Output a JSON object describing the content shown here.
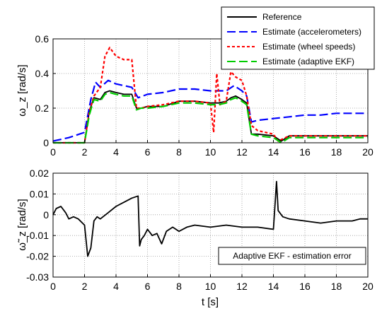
{
  "chart_data": [
    {
      "type": "line",
      "ylabel": "ω_z  [rad/s]",
      "xlim": [
        0,
        20
      ],
      "ylim": [
        0,
        0.6
      ],
      "xticks": [
        0,
        2,
        4,
        6,
        8,
        10,
        12,
        14,
        16,
        18,
        20
      ],
      "yticks": [
        0,
        0.2,
        0.4,
        0.6
      ],
      "ytick_labels": [
        "0",
        "0.2",
        "0.4",
        "0.6"
      ],
      "grid": true,
      "legend_position": "top-right",
      "series": [
        {
          "name": "Reference",
          "color": "#000000",
          "style": "solid",
          "x": [
            0,
            2.0,
            2.3,
            2.6,
            3.0,
            3.3,
            3.6,
            4.0,
            4.5,
            5.0,
            5.3,
            5.6,
            6.0,
            7.0,
            8.0,
            9.0,
            10.0,
            10.5,
            11.0,
            11.3,
            11.6,
            12.0,
            12.3,
            12.6,
            13.0,
            14.0,
            14.5,
            15.0,
            16.0,
            17.0,
            18.0,
            19.0,
            20.0
          ],
          "y": [
            0,
            0,
            0.18,
            0.26,
            0.25,
            0.29,
            0.3,
            0.29,
            0.28,
            0.28,
            0.2,
            0.2,
            0.21,
            0.21,
            0.24,
            0.24,
            0.23,
            0.23,
            0.24,
            0.26,
            0.27,
            0.25,
            0.23,
            0.05,
            0.05,
            0.04,
            0.01,
            0.04,
            0.04,
            0.04,
            0.04,
            0.04,
            0.04
          ]
        },
        {
          "name": "Estimate (accelerometers)",
          "color": "#0000ff",
          "style": "dashed",
          "x": [
            0,
            1.0,
            2.0,
            2.4,
            2.7,
            3.0,
            3.5,
            4.0,
            4.5,
            5.0,
            5.4,
            6.0,
            7.0,
            8.0,
            9.0,
            10.0,
            11.0,
            11.5,
            12.0,
            12.3,
            12.6,
            13.0,
            14.0,
            15.0,
            16.0,
            17.0,
            18.0,
            19.0,
            20.0
          ],
          "y": [
            0.01,
            0.03,
            0.06,
            0.25,
            0.35,
            0.32,
            0.36,
            0.34,
            0.33,
            0.32,
            0.26,
            0.28,
            0.29,
            0.31,
            0.31,
            0.3,
            0.3,
            0.33,
            0.3,
            0.27,
            0.12,
            0.13,
            0.14,
            0.15,
            0.16,
            0.16,
            0.17,
            0.17,
            0.17
          ]
        },
        {
          "name": "Estimate (wheel speeds)",
          "color": "#ff0000",
          "style": "dotted",
          "x": [
            0,
            2.0,
            2.3,
            2.6,
            3.0,
            3.3,
            3.6,
            4.0,
            4.5,
            5.0,
            5.3,
            5.6,
            6.0,
            7.0,
            8.0,
            9.0,
            10.0,
            10.2,
            10.4,
            10.6,
            11.0,
            11.3,
            11.6,
            12.0,
            12.3,
            12.6,
            13.0,
            14.0,
            14.3,
            15.0,
            16.0,
            17.0,
            18.0,
            19.0,
            20.0
          ],
          "y": [
            0,
            0,
            0.18,
            0.27,
            0.32,
            0.5,
            0.55,
            0.5,
            0.48,
            0.48,
            0.2,
            0.2,
            0.21,
            0.22,
            0.24,
            0.24,
            0.23,
            0.06,
            0.4,
            0.22,
            0.24,
            0.41,
            0.38,
            0.36,
            0.27,
            0.1,
            0.07,
            0.05,
            0.01,
            0.04,
            0.04,
            0.04,
            0.04,
            0.04,
            0.04
          ]
        },
        {
          "name": "Estimate (adaptive EKF)",
          "color": "#00cc00",
          "style": "dashed",
          "x": [
            0,
            2.0,
            2.3,
            2.6,
            3.0,
            3.3,
            3.6,
            4.0,
            4.5,
            5.0,
            5.3,
            5.6,
            6.0,
            7.0,
            8.0,
            9.0,
            10.0,
            10.5,
            11.0,
            11.3,
            11.6,
            12.0,
            12.3,
            12.6,
            13.0,
            14.0,
            14.5,
            15.0,
            16.0,
            17.0,
            18.0,
            19.0,
            20.0
          ],
          "y": [
            0,
            0,
            0.16,
            0.25,
            0.24,
            0.28,
            0.29,
            0.28,
            0.27,
            0.27,
            0.19,
            0.2,
            0.2,
            0.21,
            0.23,
            0.23,
            0.22,
            0.22,
            0.23,
            0.25,
            0.26,
            0.24,
            0.22,
            0.05,
            0.04,
            0.03,
            0.0,
            0.03,
            0.03,
            0.03,
            0.03,
            0.03,
            0.03
          ]
        }
      ]
    },
    {
      "type": "line",
      "ylabel": "ω̃_z  [rad/s]",
      "xlabel": "t [s]",
      "xlim": [
        0,
        20
      ],
      "ylim": [
        -0.03,
        0.02
      ],
      "xticks": [
        0,
        2,
        4,
        6,
        8,
        10,
        12,
        14,
        16,
        18,
        20
      ],
      "yticks": [
        -0.03,
        -0.02,
        -0.01,
        0,
        0.01,
        0.02
      ],
      "ytick_labels": [
        "-0.03",
        "-0.02",
        "-0.01",
        "0",
        "0.01",
        "0.02"
      ],
      "grid": true,
      "annotation": "Adaptive EKF - estimation error",
      "series": [
        {
          "color": "#000000",
          "style": "solid",
          "x": [
            0,
            0.2,
            0.5,
            0.8,
            1.0,
            1.3,
            1.6,
            2.0,
            2.2,
            2.4,
            2.6,
            2.8,
            3.0,
            3.5,
            4.0,
            4.5,
            5.0,
            5.4,
            5.5,
            5.6,
            5.8,
            6.0,
            6.3,
            6.6,
            6.9,
            7.2,
            7.6,
            8.0,
            8.5,
            9.0,
            10.0,
            11.0,
            12.0,
            13.0,
            14.0,
            14.2,
            14.3,
            14.6,
            15.0,
            16.0,
            17.0,
            18.0,
            19.0,
            19.5,
            20.0
          ],
          "y": [
            0.0,
            0.003,
            0.004,
            0.001,
            -0.002,
            -0.001,
            -0.002,
            -0.005,
            -0.02,
            -0.016,
            -0.003,
            -0.001,
            -0.002,
            0.001,
            0.004,
            0.006,
            0.008,
            0.009,
            -0.015,
            -0.012,
            -0.01,
            -0.007,
            -0.01,
            -0.009,
            -0.014,
            -0.008,
            -0.006,
            -0.008,
            -0.006,
            -0.005,
            -0.006,
            -0.005,
            -0.006,
            -0.006,
            -0.007,
            0.016,
            0.002,
            -0.001,
            -0.002,
            -0.003,
            -0.004,
            -0.003,
            -0.003,
            -0.002,
            -0.002
          ]
        }
      ]
    }
  ]
}
